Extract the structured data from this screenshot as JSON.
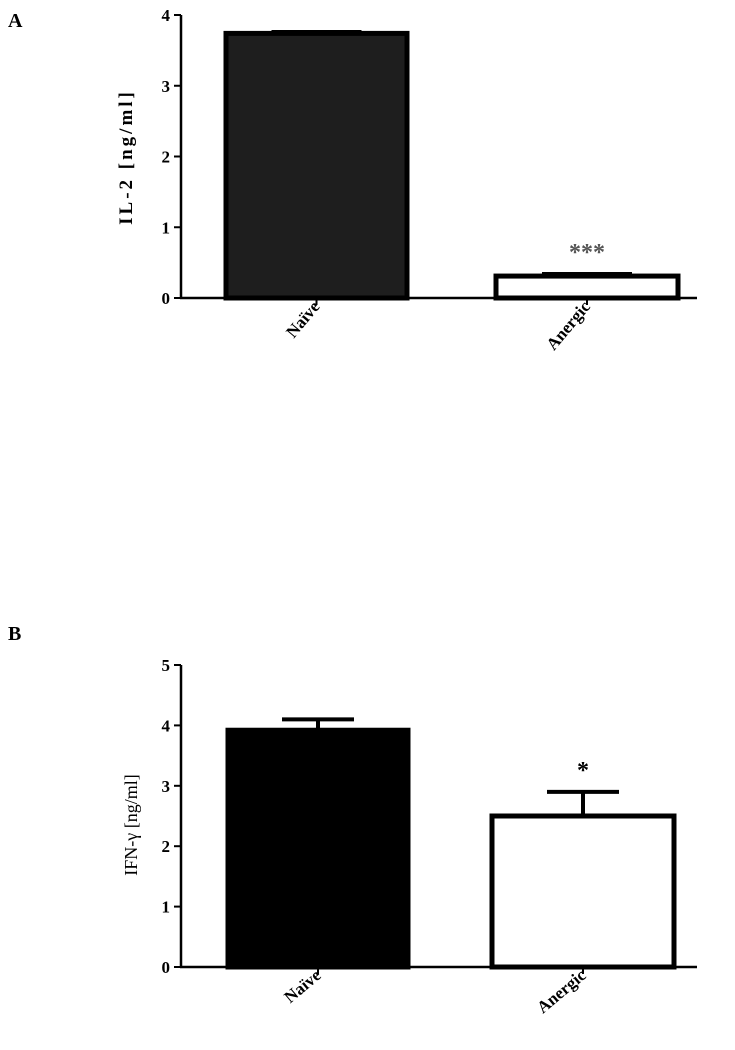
{
  "chart_data": [
    {
      "type": "bar",
      "panel_label": "A",
      "ylabel": "IL-2 [ng/ml]",
      "categories": [
        "Naïve",
        "Anergic"
      ],
      "values": [
        3.74,
        0.31
      ],
      "errors": [
        0.02,
        0.03
      ],
      "annotations": [
        "",
        "***"
      ],
      "fill_colors": [
        "#1e1e1e",
        "#ffffff"
      ],
      "ylim": [
        0,
        4
      ],
      "yticks": [
        "0",
        "1",
        "2",
        "3",
        "4"
      ],
      "grid": false
    },
    {
      "type": "bar",
      "panel_label": "B",
      "ylabel": "IFN-γ [ng/ml]",
      "categories": [
        "Naïve",
        "Anergic"
      ],
      "values": [
        3.92,
        2.5
      ],
      "errors": [
        0.18,
        0.4
      ],
      "annotations": [
        "",
        "*"
      ],
      "fill_colors": [
        "#000000",
        "#ffffff"
      ],
      "ylim": [
        0,
        5
      ],
      "yticks": [
        "0",
        "1",
        "2",
        "3",
        "4",
        "5"
      ],
      "grid": false
    }
  ]
}
